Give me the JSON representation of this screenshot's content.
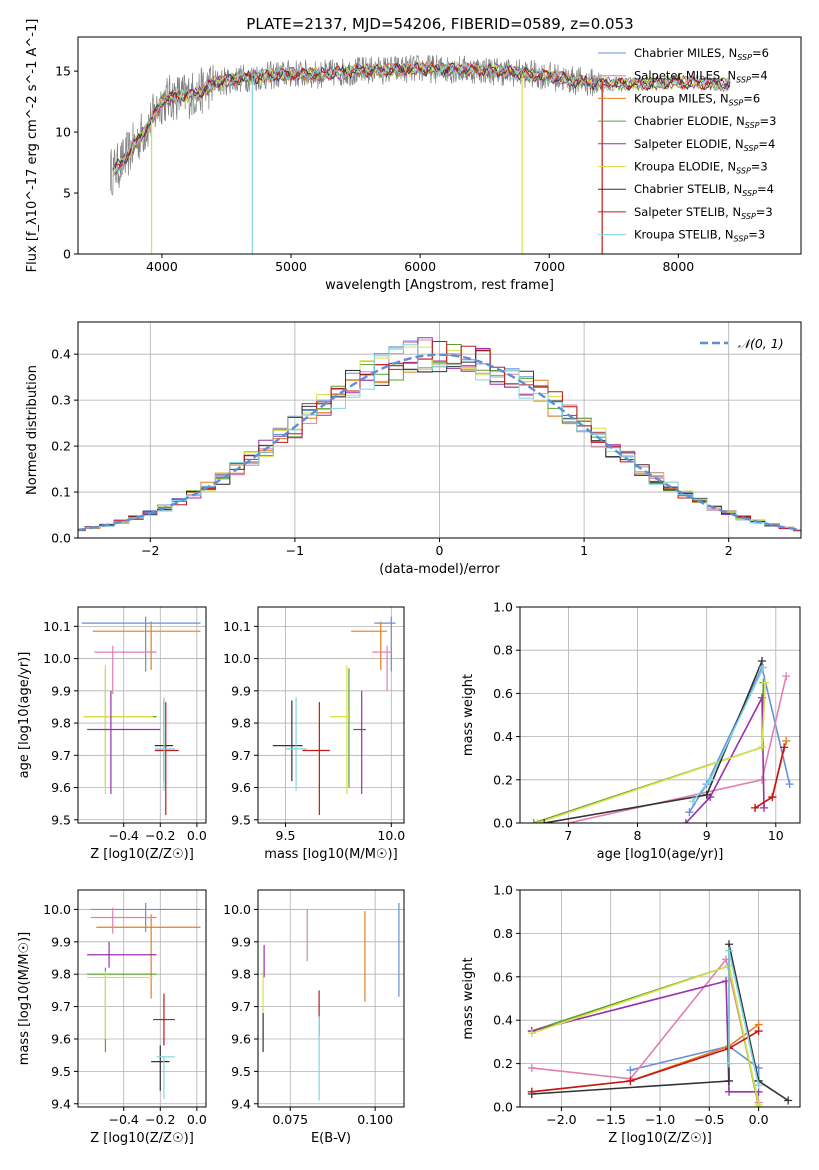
{
  "figure_title": "PLATE=2137, MJD=54206, FIBERID=0589, z=0.053",
  "colors": {
    "Chabrier MILES": "#6a8fd8",
    "Salpeter MILES": "#e27fb2",
    "Kroupa MILES": "#e87d1e",
    "Chabrier ELODIE": "#5aa02c",
    "Salpeter ELODIE": "#9b2fae",
    "Kroupa ELODIE": "#d9e04a",
    "Chabrier STELIB": "#333333",
    "Salpeter STELIB": "#c21818",
    "Kroupa STELIB": "#7fd6e0",
    "data": "#808080",
    "normal": "#5b8fd6"
  },
  "chart_data": [
    {
      "type": "line",
      "id": "spectrum",
      "xlabel": "wavelength [Angstrom, rest frame]",
      "ylabel": "Flux [f_λ10^-17 erg cm^-2 s^-1 A^-1]",
      "xlim": [
        3350,
        8950
      ],
      "ylim": [
        0,
        17.8
      ],
      "xticks": [
        4000,
        5000,
        6000,
        7000,
        8000
      ],
      "yticks": [
        0,
        5,
        10,
        15
      ],
      "grid": false,
      "legend_position": "right",
      "legend": [
        {
          "name": "Chabrier MILES",
          "nssp": "6"
        },
        {
          "name": "Salpeter MILES",
          "nssp": "4"
        },
        {
          "name": "Kroupa MILES",
          "nssp": "6"
        },
        {
          "name": "Chabrier ELODIE",
          "nssp": "3"
        },
        {
          "name": "Salpeter ELODIE",
          "nssp": "4"
        },
        {
          "name": "Kroupa ELODIE",
          "nssp": "3"
        },
        {
          "name": "Chabrier STELIB",
          "nssp": "4"
        },
        {
          "name": "Salpeter STELIB",
          "nssp": "3"
        },
        {
          "name": "Kroupa STELIB",
          "nssp": "3"
        }
      ],
      "continuum_x": [
        3620,
        3700,
        3800,
        3900,
        4000,
        4100,
        4200,
        4300,
        4400,
        4600,
        4800,
        5000,
        5200,
        5500,
        6000,
        6500,
        7000,
        7200,
        7400,
        7600,
        7800,
        8000,
        8200,
        8400
      ],
      "continuum_y": [
        6.8,
        7.6,
        9.2,
        10.6,
        12.6,
        12.9,
        13.0,
        13.3,
        14.0,
        14.4,
        14.6,
        14.8,
        14.7,
        15.0,
        15.2,
        15.1,
        14.6,
        14.2,
        14.0,
        13.9,
        14.0,
        14.1,
        14.0,
        13.9
      ],
      "data_range": [
        3600,
        7420
      ],
      "model_range": [
        3620,
        8400
      ],
      "dips": [
        {
          "x": 3920,
          "y": 0,
          "series": "Kroupa ELODIE"
        },
        {
          "x": 4700,
          "y": 0,
          "series": "Kroupa STELIB"
        },
        {
          "x": 6790,
          "y": 0,
          "series": "Kroupa ELODIE"
        },
        {
          "x": 7410,
          "y": 0,
          "series": "Salpeter STELIB"
        }
      ]
    },
    {
      "type": "histogram",
      "id": "residuals",
      "xlabel": "(data-model)/error",
      "ylabel": "Normed distribution",
      "xlim": [
        -2.5,
        2.5
      ],
      "ylim": [
        0,
        0.47
      ],
      "xticks": [
        -2,
        -1,
        0,
        1,
        2
      ],
      "yticks": [
        0.0,
        0.1,
        0.2,
        0.3,
        0.4
      ],
      "grid": true,
      "bin_width": 0.1,
      "legend_position": "top-right",
      "curve": {
        "name": "𝒩(0, 1)",
        "mean": 0,
        "sigma": 1
      }
    },
    {
      "type": "scatter",
      "id": "age_vs_Z",
      "xlabel": "Z [log10(Z/Z☉)]",
      "ylabel": "age [log10(age/yr)]",
      "xlim": [
        -0.65,
        0.05
      ],
      "ylim": [
        9.49,
        10.16
      ],
      "xticks": [
        -0.4,
        -0.2,
        0.0
      ],
      "yticks": [
        9.5,
        9.6,
        9.7,
        9.8,
        9.9,
        10.0,
        10.1
      ],
      "grid": true,
      "points": [
        {
          "series": "Chabrier MILES",
          "x": -0.28,
          "y": 10.11,
          "xerr": [
            0.35,
            0.3
          ],
          "yerr": [
            0.15,
            0.02
          ]
        },
        {
          "series": "Kroupa MILES",
          "x": -0.25,
          "y": 10.085,
          "xerr": [
            0.32,
            0.27
          ],
          "yerr": [
            0.12,
            0.03
          ]
        },
        {
          "series": "Salpeter MILES",
          "x": -0.46,
          "y": 10.02,
          "xerr": [
            0.1,
            0.24
          ],
          "yerr": [
            0.13,
            0.02
          ]
        },
        {
          "series": "Chabrier ELODIE",
          "x": -0.5,
          "y": 9.82,
          "xerr": [
            0.12,
            0.28
          ],
          "yerr": [
            0.22,
            0.15
          ]
        },
        {
          "series": "Kroupa ELODIE",
          "x": -0.5,
          "y": 9.82,
          "xerr": [
            0.12,
            0.26
          ],
          "yerr": [
            0.24,
            0.16
          ]
        },
        {
          "series": "Salpeter ELODIE",
          "x": -0.47,
          "y": 9.78,
          "xerr": [
            0.13,
            0.27
          ],
          "yerr": [
            0.2,
            0.12
          ]
        },
        {
          "series": "Chabrier STELIB",
          "x": -0.18,
          "y": 9.73,
          "xerr": [
            0.05,
            0.05
          ],
          "yerr": [
            0.11,
            0.14
          ]
        },
        {
          "series": "Salpeter STELIB",
          "x": -0.17,
          "y": 9.715,
          "xerr": [
            0.06,
            0.07
          ],
          "yerr": [
            0.2,
            0.15
          ]
        },
        {
          "series": "Kroupa STELIB",
          "x": -0.18,
          "y": 9.72,
          "xerr": [
            0.05,
            0.06
          ],
          "yerr": [
            0.13,
            0.16
          ]
        }
      ]
    },
    {
      "type": "scatter",
      "id": "age_vs_mass",
      "xlabel": "mass [log10(M/M☉)]",
      "ylabel": "",
      "xlim": [
        9.37,
        10.06
      ],
      "ylim": [
        9.49,
        10.16
      ],
      "xticks": [
        9.5,
        10.0
      ],
      "yticks": [
        9.5,
        9.6,
        9.7,
        9.8,
        9.9,
        10.0,
        10.1
      ],
      "grid": true,
      "points": [
        {
          "series": "Chabrier MILES",
          "x": 10.0,
          "y": 10.11,
          "xerr": [
            0.08,
            0.02
          ],
          "yerr": [
            0.15,
            0.02
          ]
        },
        {
          "series": "Kroupa MILES",
          "x": 9.95,
          "y": 10.085,
          "xerr": [
            0.14,
            0.03
          ],
          "yerr": [
            0.12,
            0.03
          ]
        },
        {
          "series": "Salpeter MILES",
          "x": 9.98,
          "y": 10.02,
          "xerr": [
            0.07,
            0.02
          ],
          "yerr": [
            0.12,
            0.02
          ]
        },
        {
          "series": "Chabrier ELODIE",
          "x": 9.8,
          "y": 9.82,
          "xerr": [
            0.01,
            0.0
          ],
          "yerr": [
            0.22,
            0.15
          ]
        },
        {
          "series": "Kroupa ELODIE",
          "x": 9.79,
          "y": 9.82,
          "xerr": [
            0.08,
            0.01
          ],
          "yerr": [
            0.24,
            0.16
          ]
        },
        {
          "series": "Salpeter ELODIE",
          "x": 9.86,
          "y": 9.78,
          "xerr": [
            0.04,
            0.02
          ],
          "yerr": [
            0.2,
            0.12
          ]
        },
        {
          "series": "Chabrier STELIB",
          "x": 9.53,
          "y": 9.73,
          "xerr": [
            0.09,
            0.05
          ],
          "yerr": [
            0.11,
            0.14
          ]
        },
        {
          "series": "Salpeter STELIB",
          "x": 9.66,
          "y": 9.715,
          "xerr": [
            0.08,
            0.05
          ],
          "yerr": [
            0.2,
            0.15
          ]
        },
        {
          "series": "Kroupa STELIB",
          "x": 9.55,
          "y": 9.72,
          "xerr": [
            0.05,
            0.05
          ],
          "yerr": [
            0.13,
            0.16
          ]
        }
      ]
    },
    {
      "type": "line",
      "id": "weight_vs_age",
      "xlabel": "age [log10(age/yr)]",
      "ylabel": "mass weight",
      "xlim": [
        6.3,
        10.35
      ],
      "ylim": [
        0,
        1.0
      ],
      "xticks": [
        7,
        8,
        9,
        10
      ],
      "yticks": [
        0.0,
        0.2,
        0.4,
        0.6,
        0.8,
        1.0
      ],
      "grid": true,
      "series": [
        {
          "name": "Chabrier MILES",
          "x": [
            8.75,
            9.0,
            9.8,
            10.2
          ],
          "y": [
            0.05,
            0.18,
            0.72,
            0.18
          ]
        },
        {
          "name": "Salpeter MILES",
          "x": [
            7.0,
            9.8,
            10.15
          ],
          "y": [
            0.0,
            0.2,
            0.68
          ]
        },
        {
          "name": "Kroupa MILES",
          "x": [
            9.7,
            9.95,
            10.15
          ],
          "y": [
            0.07,
            0.12,
            0.38
          ]
        },
        {
          "name": "Chabrier ELODIE",
          "x": [
            6.5,
            9.8,
            9.82
          ],
          "y": [
            0.0,
            0.35,
            0.65
          ]
        },
        {
          "name": "Salpeter ELODIE",
          "x": [
            8.7,
            9.05,
            9.8,
            9.83
          ],
          "y": [
            0.0,
            0.12,
            0.58,
            0.07
          ]
        },
        {
          "name": "Kroupa ELODIE",
          "x": [
            6.55,
            9.8,
            9.85
          ],
          "y": [
            0.0,
            0.35,
            0.65
          ]
        },
        {
          "name": "Chabrier STELIB",
          "x": [
            6.65,
            9.0,
            9.8
          ],
          "y": [
            0.0,
            0.13,
            0.75
          ]
        },
        {
          "name": "Salpeter STELIB",
          "x": [
            9.7,
            9.95,
            10.12
          ],
          "y": [
            0.07,
            0.12,
            0.35
          ]
        },
        {
          "name": "Kroupa STELIB",
          "x": [
            8.8,
            9.05,
            9.82
          ],
          "y": [
            0.1,
            0.2,
            0.72
          ]
        }
      ]
    },
    {
      "type": "scatter",
      "id": "mass_vs_Z",
      "xlabel": "Z [log10(Z/Z☉)]",
      "ylabel": "mass [log10(M/M☉)]",
      "xlim": [
        -0.65,
        0.05
      ],
      "ylim": [
        9.39,
        10.06
      ],
      "xticks": [
        -0.4,
        -0.2,
        0.0
      ],
      "yticks": [
        9.4,
        9.5,
        9.6,
        9.7,
        9.8,
        9.9,
        10.0
      ],
      "grid": true,
      "points": [
        {
          "series": "Chabrier MILES",
          "x": -0.28,
          "y": 10.0,
          "xerr": [
            0.3,
            0.3
          ],
          "yerr": [
            0.07,
            0.02
          ]
        },
        {
          "series": "Kroupa MILES",
          "x": -0.25,
          "y": 9.945,
          "xerr": [
            0.3,
            0.27
          ],
          "yerr": [
            0.22,
            0.04
          ]
        },
        {
          "series": "Salpeter MILES",
          "x": -0.46,
          "y": 9.975,
          "xerr": [
            0.12,
            0.24
          ],
          "yerr": [
            0.05,
            0.03
          ]
        },
        {
          "series": "Chabrier ELODIE",
          "x": -0.5,
          "y": 9.8,
          "xerr": [
            0.1,
            0.28
          ],
          "yerr": [
            0.24,
            0.02
          ]
        },
        {
          "series": "Kroupa ELODIE",
          "x": -0.5,
          "y": 9.79,
          "xerr": [
            0.1,
            0.26
          ],
          "yerr": [
            0.19,
            0.02
          ]
        },
        {
          "series": "Salpeter ELODIE",
          "x": -0.48,
          "y": 9.86,
          "xerr": [
            0.12,
            0.26
          ],
          "yerr": [
            0.04,
            0.04
          ]
        },
        {
          "series": "Chabrier STELIB",
          "x": -0.2,
          "y": 9.53,
          "xerr": [
            0.05,
            0.05
          ],
          "yerr": [
            0.09,
            0.05
          ]
        },
        {
          "series": "Salpeter STELIB",
          "x": -0.18,
          "y": 9.66,
          "xerr": [
            0.06,
            0.06
          ],
          "yerr": [
            0.08,
            0.08
          ]
        },
        {
          "series": "Kroupa STELIB",
          "x": -0.18,
          "y": 9.545,
          "xerr": [
            0.04,
            0.06
          ],
          "yerr": [
            0.13,
            0.0
          ]
        }
      ]
    },
    {
      "type": "scatter",
      "id": "mass_vs_ebv",
      "xlabel": "E(B-V)",
      "ylabel": "",
      "xlim": [
        0.0655,
        0.1085
      ],
      "ylim": [
        9.39,
        10.06
      ],
      "xticks": [
        0.075,
        0.1
      ],
      "yticks": [
        9.4,
        9.5,
        9.6,
        9.7,
        9.8,
        9.9,
        10.0
      ],
      "grid": true,
      "points": [
        {
          "series": "Chabrier MILES",
          "x": 0.107,
          "y": 9.88,
          "xerr": [
            0,
            0
          ],
          "yerr": [
            0.15,
            0.14
          ]
        },
        {
          "series": "Kroupa MILES",
          "x": 0.097,
          "y": 9.855,
          "xerr": [
            0,
            0
          ],
          "yerr": [
            0.14,
            0.14
          ]
        },
        {
          "series": "Salpeter MILES",
          "x": 0.08,
          "y": 9.92,
          "xerr": [
            0,
            0
          ],
          "yerr": [
            0.08,
            0.08
          ]
        },
        {
          "series": "Salpeter ELODIE",
          "x": 0.0673,
          "y": 9.84,
          "xerr": [
            0,
            0
          ],
          "yerr": [
            0.05,
            0.05
          ]
        },
        {
          "series": "Kroupa ELODIE",
          "x": 0.067,
          "y": 9.72,
          "xerr": [
            0,
            0
          ],
          "yerr": [
            0.12,
            0.09
          ]
        },
        {
          "series": "Chabrier STELIB",
          "x": 0.067,
          "y": 9.62,
          "xerr": [
            0,
            0
          ],
          "yerr": [
            0.06,
            0.06
          ]
        },
        {
          "series": "Salpeter STELIB",
          "x": 0.0835,
          "y": 9.68,
          "xerr": [
            0,
            0
          ],
          "yerr": [
            0.07,
            0.07
          ]
        },
        {
          "series": "Kroupa STELIB",
          "x": 0.0835,
          "y": 9.54,
          "xerr": [
            0,
            0
          ],
          "yerr": [
            0.13,
            0.13
          ]
        }
      ]
    },
    {
      "type": "line",
      "id": "weight_vs_Z",
      "xlabel": "Z [log10(Z/Z☉)]",
      "ylabel": "mass weight",
      "xlim": [
        -2.42,
        0.42
      ],
      "ylim": [
        0,
        1.0
      ],
      "xticks": [
        -2.0,
        -1.5,
        -1.0,
        -0.5,
        0.0
      ],
      "yticks": [
        0.0,
        0.2,
        0.4,
        0.6,
        0.8,
        1.0
      ],
      "grid": true,
      "series": [
        {
          "name": "Chabrier MILES",
          "x": [
            -1.3,
            -0.3,
            0.0,
            0.0
          ],
          "y": [
            0.17,
            0.28,
            0.18,
            0.12
          ]
        },
        {
          "name": "Salpeter MILES",
          "x": [
            -2.3,
            -1.3,
            -0.33,
            0.0
          ],
          "y": [
            0.18,
            0.13,
            0.68,
            0.02
          ]
        },
        {
          "name": "Kroupa MILES",
          "x": [
            -2.3,
            -1.3,
            -0.3,
            0.0
          ],
          "y": [
            0.07,
            0.12,
            0.28,
            0.38
          ]
        },
        {
          "name": "Chabrier ELODIE",
          "x": [
            -2.3,
            -0.3,
            0.0
          ],
          "y": [
            0.35,
            0.65,
            0.0
          ]
        },
        {
          "name": "Salpeter ELODIE",
          "x": [
            -2.3,
            -0.33,
            -0.3,
            0.0
          ],
          "y": [
            0.35,
            0.58,
            0.07,
            0.07
          ]
        },
        {
          "name": "Kroupa ELODIE",
          "x": [
            -2.3,
            -0.3,
            0.0
          ],
          "y": [
            0.34,
            0.65,
            0.01
          ]
        },
        {
          "name": "Chabrier STELIB",
          "x": [
            -2.3,
            -0.3,
            -0.3,
            0.0,
            0.3
          ],
          "y": [
            0.06,
            0.12,
            0.75,
            0.12,
            0.03
          ]
        },
        {
          "name": "Salpeter STELIB",
          "x": [
            -2.3,
            -1.3,
            -0.3,
            0.0
          ],
          "y": [
            0.07,
            0.12,
            0.27,
            0.35
          ]
        },
        {
          "name": "Kroupa STELIB",
          "x": [
            -0.3,
            -0.3,
            0.0
          ],
          "y": [
            0.2,
            0.72,
            0.1
          ]
        }
      ]
    }
  ]
}
